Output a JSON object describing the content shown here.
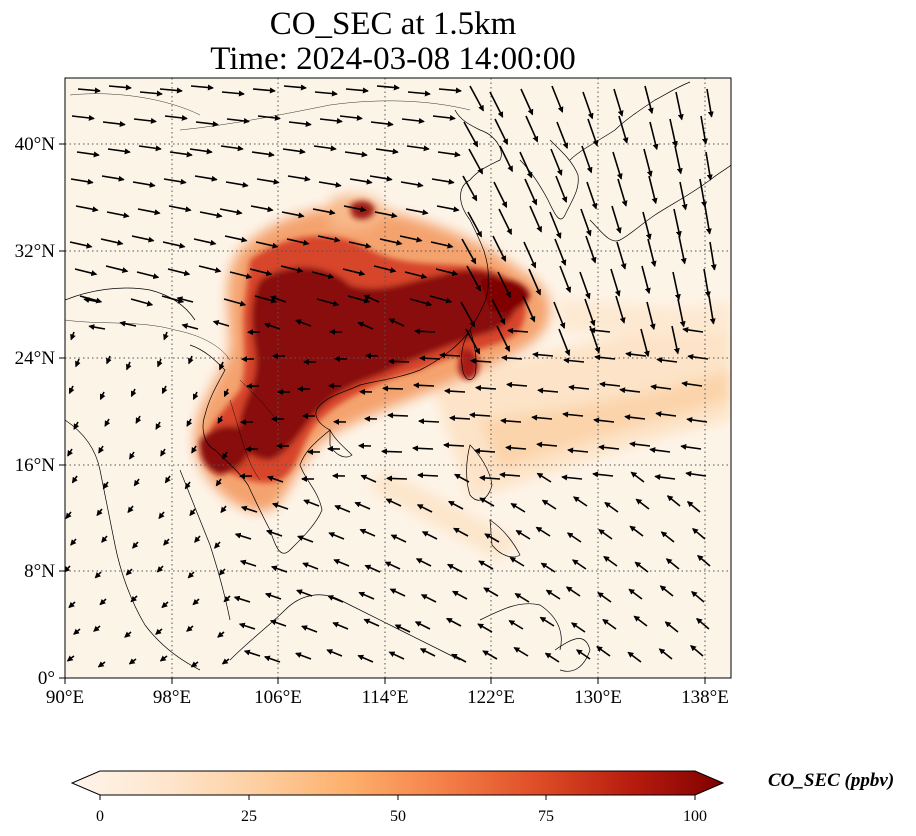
{
  "figure": {
    "title_line1": "CO_SEC at 1.5km",
    "title_line2": "Time: 2024-03-08 14:00:00"
  },
  "map": {
    "lon_range": [
      90,
      140
    ],
    "lat_range": [
      0,
      44
    ],
    "lon_ticks": [
      "90°E",
      "98°E",
      "106°E",
      "114°E",
      "122°E",
      "130°E",
      "138°E"
    ],
    "lat_ticks": [
      "0°",
      "8°N",
      "16°N",
      "24°N",
      "32°N",
      "40°N"
    ],
    "grid_style": "dotted"
  },
  "colorbar": {
    "label": "CO_SEC (ppbv)",
    "ticks": [
      "0",
      "25",
      "50",
      "75",
      "100"
    ],
    "range": [
      0,
      100
    ],
    "colormap": [
      "#fff5eb",
      "#fee6ce",
      "#fdd0a2",
      "#fdae6b",
      "#f16913",
      "#d94801",
      "#a50f15",
      "#7f0000"
    ],
    "extend": "both"
  },
  "field_colors": {
    "background": "#fdf4e8",
    "low": "#fde2c4",
    "mid": "#f4a36e",
    "high": "#d7452a",
    "max": "#800000"
  }
}
